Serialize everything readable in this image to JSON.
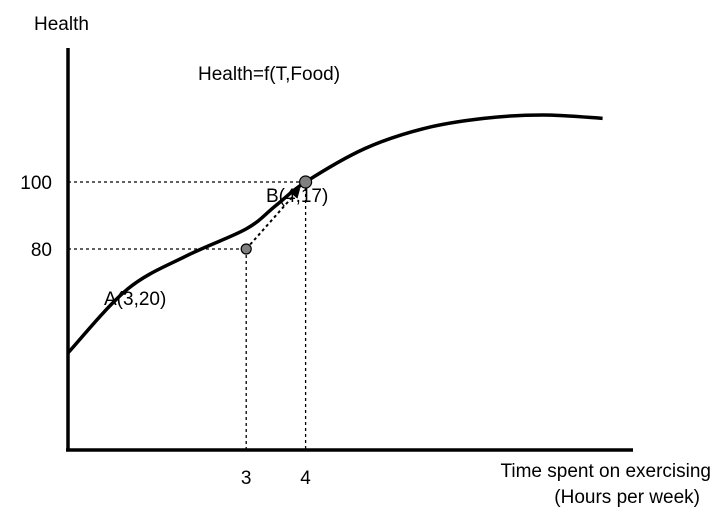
{
  "chart_data": {
    "type": "line",
    "title": "Health=f(T,Food)",
    "ylabel": "Health",
    "xlabel_line1": "Time spent on exercising",
    "xlabel_line2": "(Hours per week)",
    "x_ticks": [
      {
        "value": 3,
        "label": "3"
      },
      {
        "value": 4,
        "label": "4"
      }
    ],
    "y_ticks": [
      {
        "value": 80,
        "label": "80"
      },
      {
        "value": 100,
        "label": "100"
      }
    ],
    "points": [
      {
        "name": "A",
        "label": "A(3,20)",
        "x": 3,
        "y": 80
      },
      {
        "name": "B",
        "label": "B(4,17)",
        "x": 4,
        "y": 100
      }
    ],
    "curve": {
      "x": [
        0,
        1,
        2,
        3,
        3.5,
        4,
        5,
        6,
        7,
        8,
        9
      ],
      "y": [
        49,
        68,
        78,
        86,
        93,
        100,
        110,
        116,
        119,
        120,
        119
      ]
    },
    "arrow": {
      "from": "A",
      "to": "B"
    },
    "xlim": [
      0,
      9.5
    ],
    "ylim": [
      20,
      155
    ],
    "colors": {
      "axis": "#000000",
      "curve": "#000000",
      "marker": "#808080",
      "guide": "#000000"
    }
  }
}
